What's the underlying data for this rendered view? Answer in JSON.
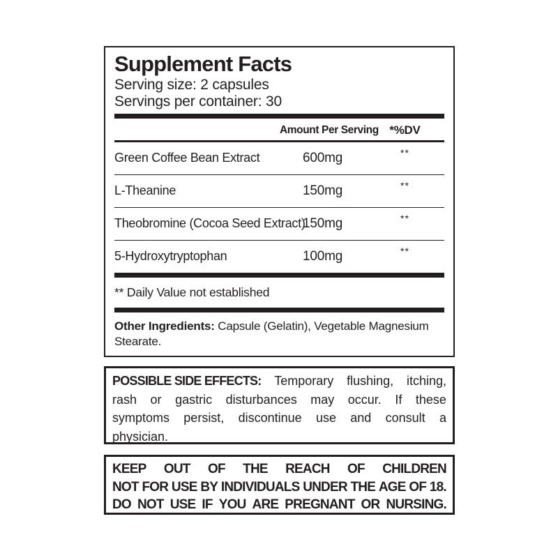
{
  "supplement_facts": {
    "title": "Supplement Facts",
    "serving_size": "Serving size: 2 capsules",
    "servings_per_container": "Servings per container: 30",
    "columns": {
      "amount": "Amount Per Serving",
      "dv": "*%DV"
    },
    "rows": [
      {
        "name": "Green Coffee Bean Extract",
        "amount": "600mg",
        "dv": "**"
      },
      {
        "name": "L-Theanine",
        "amount": "150mg",
        "dv": "**"
      },
      {
        "name": "Theobromine (Cocoa Seed Extract)",
        "amount": "150mg",
        "dv": "**"
      },
      {
        "name": "5-Hydroxytryptophan",
        "amount": "100mg",
        "dv": "**"
      }
    ],
    "footnote": "** Daily Value not established",
    "other_ingredients_label": "Other Ingredients:",
    "other_ingredients_text": " Capsule (Gelatin), Vegetable Magnesium Stearate."
  },
  "side_effects": {
    "label": "POSSIBLE SIDE EFFECTS:",
    "lines": [
      "Temporary flushing, itching,",
      "rash or gastric disturbances may occur. If these",
      "symptoms persist, discontinue use and consult a",
      "physician."
    ]
  },
  "warnings": {
    "lines": [
      "KEEP OUT OF THE REACH OF CHILDREN",
      "NOT FOR USE BY INDIVIDUALS UNDER THE AGE OF 18.",
      "DO NOT USE IF YOU ARE PREGNANT OR NURSING."
    ]
  },
  "colors": {
    "text": "#221e1f",
    "border": "#221e1f",
    "background": "#ffffff"
  }
}
